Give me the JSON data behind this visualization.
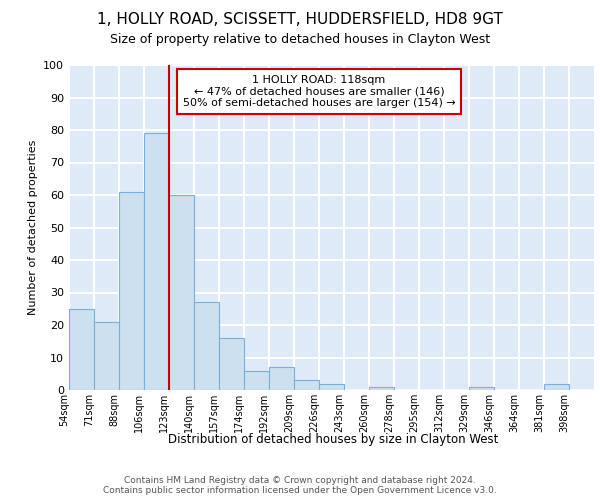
{
  "title1": "1, HOLLY ROAD, SCISSETT, HUDDERSFIELD, HD8 9GT",
  "title2": "Size of property relative to detached houses in Clayton West",
  "xlabel": "Distribution of detached houses by size in Clayton West",
  "ylabel": "Number of detached properties",
  "bin_labels": [
    "54sqm",
    "71sqm",
    "88sqm",
    "106sqm",
    "123sqm",
    "140sqm",
    "157sqm",
    "174sqm",
    "192sqm",
    "209sqm",
    "226sqm",
    "243sqm",
    "260sqm",
    "278sqm",
    "295sqm",
    "312sqm",
    "329sqm",
    "346sqm",
    "364sqm",
    "381sqm",
    "398sqm"
  ],
  "bar_values": [
    25,
    21,
    61,
    79,
    60,
    27,
    16,
    6,
    7,
    3,
    2,
    0,
    1,
    0,
    0,
    0,
    1,
    0,
    0,
    2,
    0
  ],
  "bar_color": "#cce0f0",
  "bar_edge_color": "#7ab0d8",
  "subject_line_bin": 4,
  "annotation_box_text": "1 HOLLY ROAD: 118sqm\n← 47% of detached houses are smaller (146)\n50% of semi-detached houses are larger (154) →",
  "footer_line1": "Contains HM Land Registry data © Crown copyright and database right 2024.",
  "footer_line2": "Contains public sector information licensed under the Open Government Licence v3.0.",
  "figure_background_color": "#ffffff",
  "plot_background_color": "#deeaf8",
  "grid_color": "#ffffff",
  "annotation_box_color": "#ffffff",
  "annotation_box_edge_color": "#cc0000",
  "subject_line_color": "#cc0000",
  "ylim": [
    0,
    100
  ],
  "yticks": [
    0,
    10,
    20,
    30,
    40,
    50,
    60,
    70,
    80,
    90,
    100
  ],
  "title1_fontsize": 11,
  "title2_fontsize": 9
}
